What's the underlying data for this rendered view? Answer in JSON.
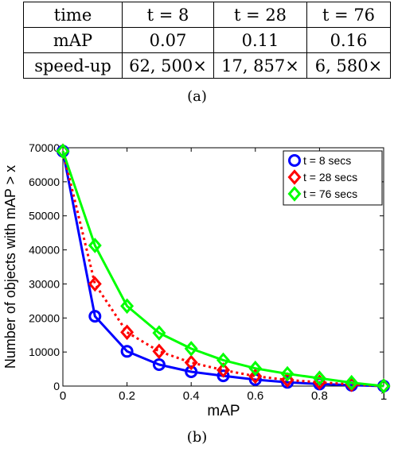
{
  "table": {
    "header": [
      "time",
      "t = 8",
      "t = 28",
      "t = 76"
    ],
    "rows": [
      [
        "mAP",
        "0.07",
        "0.11",
        "0.16"
      ],
      [
        "speed-up",
        "62, 500×",
        "17, 857×",
        "6, 580×"
      ]
    ],
    "caption": "(a)"
  },
  "figure_caption": "(b)",
  "chart_data": {
    "type": "line",
    "xlabel": "mAP",
    "ylabel": "Number of objects with mAP > x",
    "xlim": [
      0,
      1
    ],
    "ylim": [
      0,
      70000
    ],
    "xticks": [
      "0",
      "0.2",
      "0.4",
      "0.6",
      "0.8",
      "1"
    ],
    "xtick_values": [
      0,
      0.2,
      0.4,
      0.6,
      0.8,
      1
    ],
    "yticks": [
      "0",
      "10000",
      "20000",
      "30000",
      "40000",
      "50000",
      "60000",
      "70000"
    ],
    "ytick_values": [
      0,
      10000,
      20000,
      30000,
      40000,
      50000,
      60000,
      70000
    ],
    "grid": false,
    "legend_position": "top-right",
    "x": [
      0,
      0.1,
      0.2,
      0.3,
      0.4,
      0.5,
      0.6,
      0.7,
      0.8,
      0.9,
      1.0
    ],
    "series": [
      {
        "name": "t = 8 secs",
        "color": "#0000ff",
        "marker": "circle",
        "line_style": "solid",
        "values": [
          69000,
          20500,
          10200,
          6300,
          4200,
          3000,
          1900,
          1100,
          600,
          250,
          0
        ]
      },
      {
        "name": "t = 28 secs",
        "color": "#ff0000",
        "marker": "diamond",
        "line_style": "dotted",
        "values": [
          69000,
          30000,
          15800,
          10200,
          6900,
          4700,
          2900,
          1800,
          1100,
          500,
          0
        ]
      },
      {
        "name": "t = 76 secs",
        "color": "#00ff00",
        "marker": "diamond",
        "line_style": "solid",
        "values": [
          69000,
          41300,
          23500,
          15600,
          11000,
          7600,
          5200,
          3600,
          2300,
          1000,
          0
        ]
      }
    ]
  }
}
